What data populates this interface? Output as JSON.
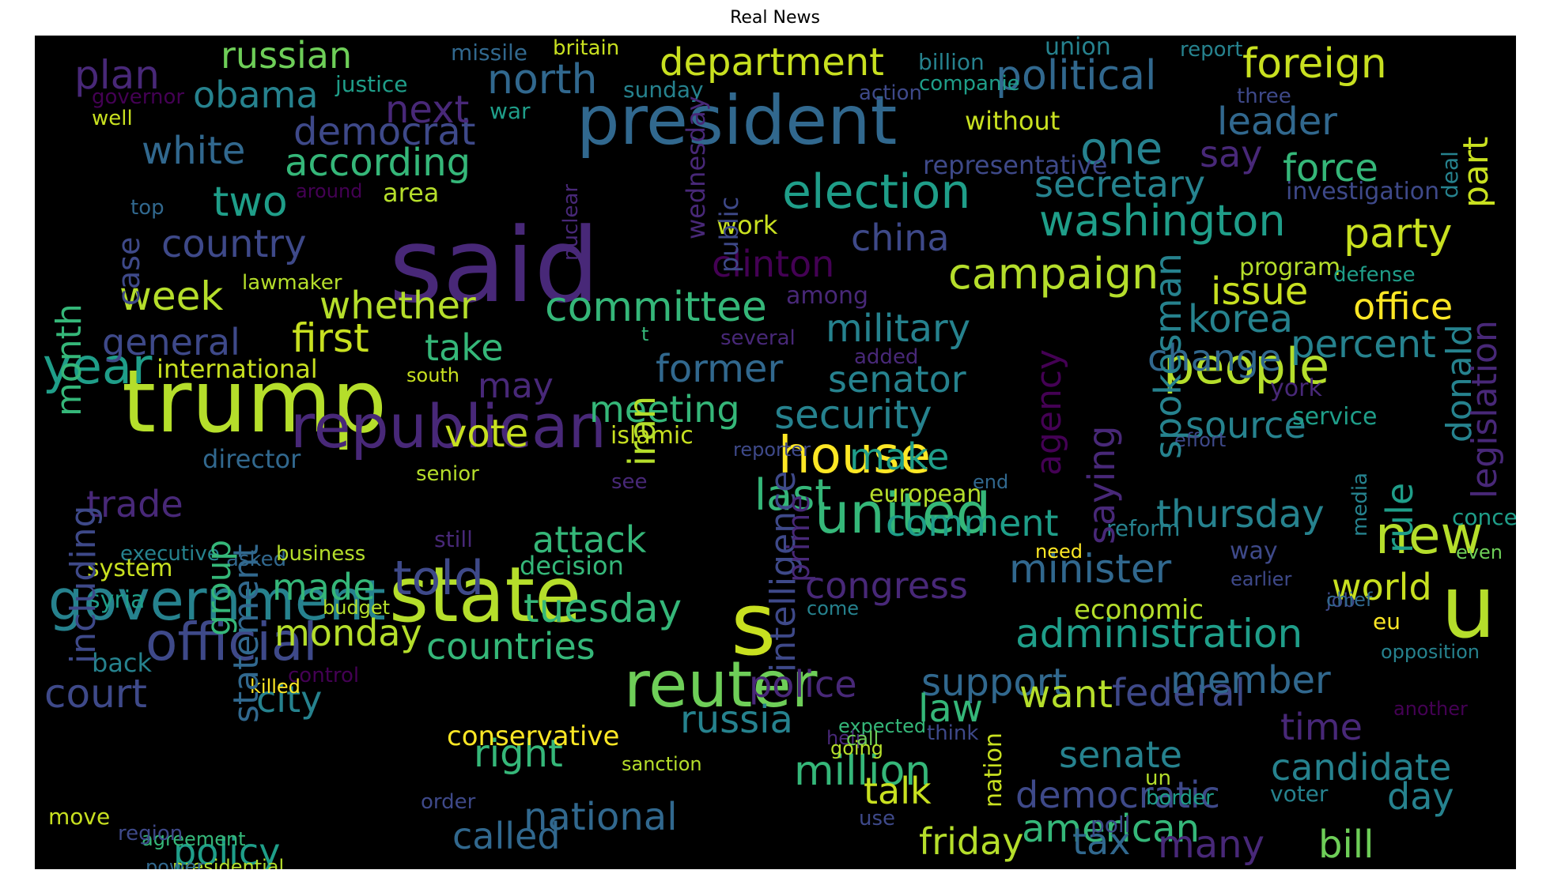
{
  "title": "Real News",
  "palette": [
    "#440154",
    "#482878",
    "#3e4989",
    "#31688e",
    "#26828e",
    "#1f9e89",
    "#35b779",
    "#6ece58",
    "#b5de2b",
    "#fde725"
  ],
  "words": [
    {
      "t": "said",
      "c": "#482878"
    },
    {
      "t": "trump",
      "c": "#b5de2b"
    },
    {
      "t": "president",
      "c": "#31688e"
    },
    {
      "t": "state",
      "c": "#b5de2b"
    },
    {
      "t": "reuter",
      "c": "#6ece58"
    },
    {
      "t": "republican",
      "c": "#482878"
    },
    {
      "t": "government",
      "c": "#26828e"
    },
    {
      "t": "s",
      "c": "#c8e020"
    },
    {
      "t": "u",
      "c": "#b5de2b"
    },
    {
      "t": "new",
      "c": "#b5de2b"
    },
    {
      "t": "united",
      "c": "#35b779"
    },
    {
      "t": "house",
      "c": "#fde725"
    },
    {
      "t": "official",
      "c": "#3e4989"
    },
    {
      "t": "people",
      "c": "#b5de2b"
    },
    {
      "t": "year",
      "c": "#1f9e89"
    },
    {
      "t": "election",
      "c": "#1f9e89"
    },
    {
      "t": "washington",
      "c": "#1f9e89"
    },
    {
      "t": "campaign",
      "c": "#b5de2b"
    },
    {
      "t": "party",
      "c": "#c8e020"
    },
    {
      "t": "told",
      "c": "#3e4989"
    },
    {
      "t": "administration",
      "c": "#1f9e89"
    },
    {
      "t": "committee",
      "c": "#35b779"
    },
    {
      "t": "security",
      "c": "#26828e"
    },
    {
      "t": "million",
      "c": "#35b779"
    },
    {
      "t": "minister",
      "c": "#31688e"
    },
    {
      "t": "foreign",
      "c": "#c8e020"
    },
    {
      "t": "political",
      "c": "#31688e"
    },
    {
      "t": "north",
      "c": "#31688e"
    },
    {
      "t": "department",
      "c": "#c8e020"
    },
    {
      "t": "russian",
      "c": "#6ece58"
    },
    {
      "t": "obama",
      "c": "#26828e"
    },
    {
      "t": "plan",
      "c": "#482878"
    },
    {
      "t": "democrat",
      "c": "#3e4989"
    },
    {
      "t": "next",
      "c": "#482878"
    },
    {
      "t": "white",
      "c": "#31688e"
    },
    {
      "t": "according",
      "c": "#35b779"
    },
    {
      "t": "two",
      "c": "#1f9e89"
    },
    {
      "t": "country",
      "c": "#3e4989"
    },
    {
      "t": "week",
      "c": "#b5de2b"
    },
    {
      "t": "whether",
      "c": "#b5de2b"
    },
    {
      "t": "general",
      "c": "#3e4989"
    },
    {
      "t": "first",
      "c": "#c8e020"
    },
    {
      "t": "take",
      "c": "#35b779"
    },
    {
      "t": "international",
      "c": "#c8e020"
    },
    {
      "t": "military",
      "c": "#26828e"
    },
    {
      "t": "china",
      "c": "#3e4989"
    },
    {
      "t": "clinton",
      "c": "#440154"
    },
    {
      "t": "one",
      "c": "#26828e"
    },
    {
      "t": "secretary",
      "c": "#26828e"
    },
    {
      "t": "say",
      "c": "#482878"
    },
    {
      "t": "leader",
      "c": "#31688e"
    },
    {
      "t": "force",
      "c": "#35b779"
    },
    {
      "t": "issue",
      "c": "#c8e020"
    },
    {
      "t": "korea",
      "c": "#26828e"
    },
    {
      "t": "office",
      "c": "#fde725"
    },
    {
      "t": "percent",
      "c": "#26828e"
    },
    {
      "t": "change",
      "c": "#31688e"
    },
    {
      "t": "senator",
      "c": "#26828e"
    },
    {
      "t": "former",
      "c": "#31688e"
    },
    {
      "t": "meeting",
      "c": "#35b779"
    },
    {
      "t": "vote",
      "c": "#c8e020"
    },
    {
      "t": "may",
      "c": "#482878"
    },
    {
      "t": "make",
      "c": "#1f9e89"
    },
    {
      "t": "last",
      "c": "#35b779"
    },
    {
      "t": "european",
      "c": "#b5de2b"
    },
    {
      "t": "comment",
      "c": "#1f9e89"
    },
    {
      "t": "thursday",
      "c": "#26828e"
    },
    {
      "t": "trade",
      "c": "#482878"
    },
    {
      "t": "attack",
      "c": "#35b779"
    },
    {
      "t": "decision",
      "c": "#35b779"
    },
    {
      "t": "made",
      "c": "#35b779"
    },
    {
      "t": "tuesday",
      "c": "#35b779"
    },
    {
      "t": "countries",
      "c": "#35b779"
    },
    {
      "t": "monday",
      "c": "#b5de2b"
    },
    {
      "t": "congress",
      "c": "#482878"
    },
    {
      "t": "police",
      "c": "#482878"
    },
    {
      "t": "support",
      "c": "#31688e"
    },
    {
      "t": "law",
      "c": "#35b779"
    },
    {
      "t": "want",
      "c": "#b5de2b"
    },
    {
      "t": "federal",
      "c": "#3e4989"
    },
    {
      "t": "member",
      "c": "#31688e"
    },
    {
      "t": "time",
      "c": "#482878"
    },
    {
      "t": "senate",
      "c": "#26828e"
    },
    {
      "t": "candidate",
      "c": "#26828e"
    },
    {
      "t": "court",
      "c": "#3e4989"
    },
    {
      "t": "city",
      "c": "#26828e"
    },
    {
      "t": "russia",
      "c": "#26828e"
    },
    {
      "t": "right",
      "c": "#35b779"
    },
    {
      "t": "conservative",
      "c": "#fde725"
    },
    {
      "t": "national",
      "c": "#31688e"
    },
    {
      "t": "talk",
      "c": "#c8e020"
    },
    {
      "t": "democratic",
      "c": "#3e4989"
    },
    {
      "t": "american",
      "c": "#35b779"
    },
    {
      "t": "policy",
      "c": "#1f9e89"
    },
    {
      "t": "called",
      "c": "#31688e"
    },
    {
      "t": "friday",
      "c": "#b5de2b"
    },
    {
      "t": "tax",
      "c": "#31688e"
    },
    {
      "t": "bill",
      "c": "#6ece58"
    },
    {
      "t": "day",
      "c": "#26828e"
    },
    {
      "t": "many",
      "c": "#482878"
    },
    {
      "t": "source",
      "c": "#26828e"
    },
    {
      "t": "world",
      "c": "#c8e020"
    },
    {
      "t": "economic",
      "c": "#b5de2b"
    },
    {
      "t": "representative",
      "c": "#3e4989"
    },
    {
      "t": "without",
      "c": "#c8e020"
    },
    {
      "t": "billion",
      "c": "#26828e"
    },
    {
      "t": "union",
      "c": "#26828e"
    },
    {
      "t": "report",
      "c": "#26828e"
    },
    {
      "t": "missile",
      "c": "#31688e"
    },
    {
      "t": "britain",
      "c": "#c8e020"
    },
    {
      "t": "justice",
      "c": "#1f9e89"
    },
    {
      "t": "governor",
      "c": "#440154"
    },
    {
      "t": "well",
      "c": "#c8e020"
    },
    {
      "t": "war",
      "c": "#1f9e89"
    },
    {
      "t": "sunday",
      "c": "#26828e"
    },
    {
      "t": "action",
      "c": "#3e4989"
    },
    {
      "t": "companie",
      "c": "#1f9e89"
    },
    {
      "t": "three",
      "c": "#3e4989"
    },
    {
      "t": "area",
      "c": "#b5de2b"
    },
    {
      "t": "around",
      "c": "#440154"
    },
    {
      "t": "top",
      "c": "#31688e"
    },
    {
      "t": "work",
      "c": "#c8e020"
    },
    {
      "t": "program",
      "c": "#b5de2b"
    },
    {
      "t": "investigation",
      "c": "#3e4989"
    },
    {
      "t": "defense",
      "c": "#1f9e89"
    },
    {
      "t": "lawmaker",
      "c": "#b5de2b"
    },
    {
      "t": "among",
      "c": "#482878"
    },
    {
      "t": "t",
      "c": "#35b779"
    },
    {
      "t": "several",
      "c": "#482878"
    },
    {
      "t": "added",
      "c": "#482878"
    },
    {
      "t": "south",
      "c": "#c8e020"
    },
    {
      "t": "york",
      "c": "#482878"
    },
    {
      "t": "service",
      "c": "#1f9e89"
    },
    {
      "t": "effort",
      "c": "#3e4989"
    },
    {
      "t": "islamic",
      "c": "#c8e020"
    },
    {
      "t": "reporter",
      "c": "#3e4989"
    },
    {
      "t": "director",
      "c": "#31688e"
    },
    {
      "t": "senior",
      "c": "#b5de2b"
    },
    {
      "t": "see",
      "c": "#482878"
    },
    {
      "t": "end",
      "c": "#31688e"
    },
    {
      "t": "reform",
      "c": "#26828e"
    },
    {
      "t": "need",
      "c": "#fde725"
    },
    {
      "t": "way",
      "c": "#3e4989"
    },
    {
      "t": "concern",
      "c": "#1f9e89"
    },
    {
      "t": "executive",
      "c": "#26828e"
    },
    {
      "t": "asked",
      "c": "#31688e"
    },
    {
      "t": "business",
      "c": "#b5de2b"
    },
    {
      "t": "still",
      "c": "#482878"
    },
    {
      "t": "system",
      "c": "#c8e020"
    },
    {
      "t": "earlier",
      "c": "#3e4989"
    },
    {
      "t": "job",
      "c": "#3e4989"
    },
    {
      "t": "chief",
      "c": "#31688e"
    },
    {
      "t": "even",
      "c": "#6ece58"
    },
    {
      "t": "syria",
      "c": "#1f9e89"
    },
    {
      "t": "budget",
      "c": "#b5de2b"
    },
    {
      "t": "come",
      "c": "#26828e"
    },
    {
      "t": "eu",
      "c": "#fde725"
    },
    {
      "t": "back",
      "c": "#26828e"
    },
    {
      "t": "control",
      "c": "#440154"
    },
    {
      "t": "opposition",
      "c": "#26828e"
    },
    {
      "t": "another",
      "c": "#440154"
    },
    {
      "t": "expected",
      "c": "#35b779"
    },
    {
      "t": "killed",
      "c": "#fde725"
    },
    {
      "t": "help",
      "c": "#482878"
    },
    {
      "t": "call",
      "c": "#6ece58"
    },
    {
      "t": "think",
      "c": "#3e4989"
    },
    {
      "t": "sanction",
      "c": "#b5de2b"
    },
    {
      "t": "going",
      "c": "#b5de2b"
    },
    {
      "t": "un",
      "c": "#b5de2b"
    },
    {
      "t": "move",
      "c": "#c8e020"
    },
    {
      "t": "use",
      "c": "#3e4989"
    },
    {
      "t": "poll",
      "c": "#3e4989"
    },
    {
      "t": "order",
      "c": "#3e4989"
    },
    {
      "t": "voter",
      "c": "#26828e"
    },
    {
      "t": "border",
      "c": "#1f9e89"
    },
    {
      "t": "agreement",
      "c": "#35b779"
    },
    {
      "t": "region",
      "c": "#3e4989"
    },
    {
      "t": "presidential",
      "c": "#b5de2b"
    },
    {
      "t": "power",
      "c": "#31688e"
    },
    {
      "t": "month",
      "c": "#35b779"
    },
    {
      "t": "case",
      "c": "#3e4989"
    },
    {
      "t": "including",
      "c": "#3e4989"
    },
    {
      "t": "group",
      "c": "#35b779"
    },
    {
      "t": "statement",
      "c": "#31688e"
    },
    {
      "t": "iran",
      "c": "#b5de2b"
    },
    {
      "t": "intelligence",
      "c": "#3e4989"
    },
    {
      "t": "prime",
      "c": "#482878"
    },
    {
      "t": "nuclear",
      "c": "#482878"
    },
    {
      "t": "wednesday",
      "c": "#482878"
    },
    {
      "t": "public",
      "c": "#3e4989"
    },
    {
      "t": "saying",
      "c": "#482878"
    },
    {
      "t": "agency",
      "c": "#440154"
    },
    {
      "t": "spokesman",
      "c": "#26828e"
    },
    {
      "t": "nation",
      "c": "#c8e020"
    },
    {
      "t": "deal",
      "c": "#26828e"
    },
    {
      "t": "part",
      "c": "#c8e020"
    },
    {
      "t": "donald",
      "c": "#26828e"
    },
    {
      "t": "legislation",
      "c": "#482878"
    },
    {
      "t": "rule",
      "c": "#1f9e89"
    },
    {
      "t": "media",
      "c": "#26828e"
    }
  ]
}
